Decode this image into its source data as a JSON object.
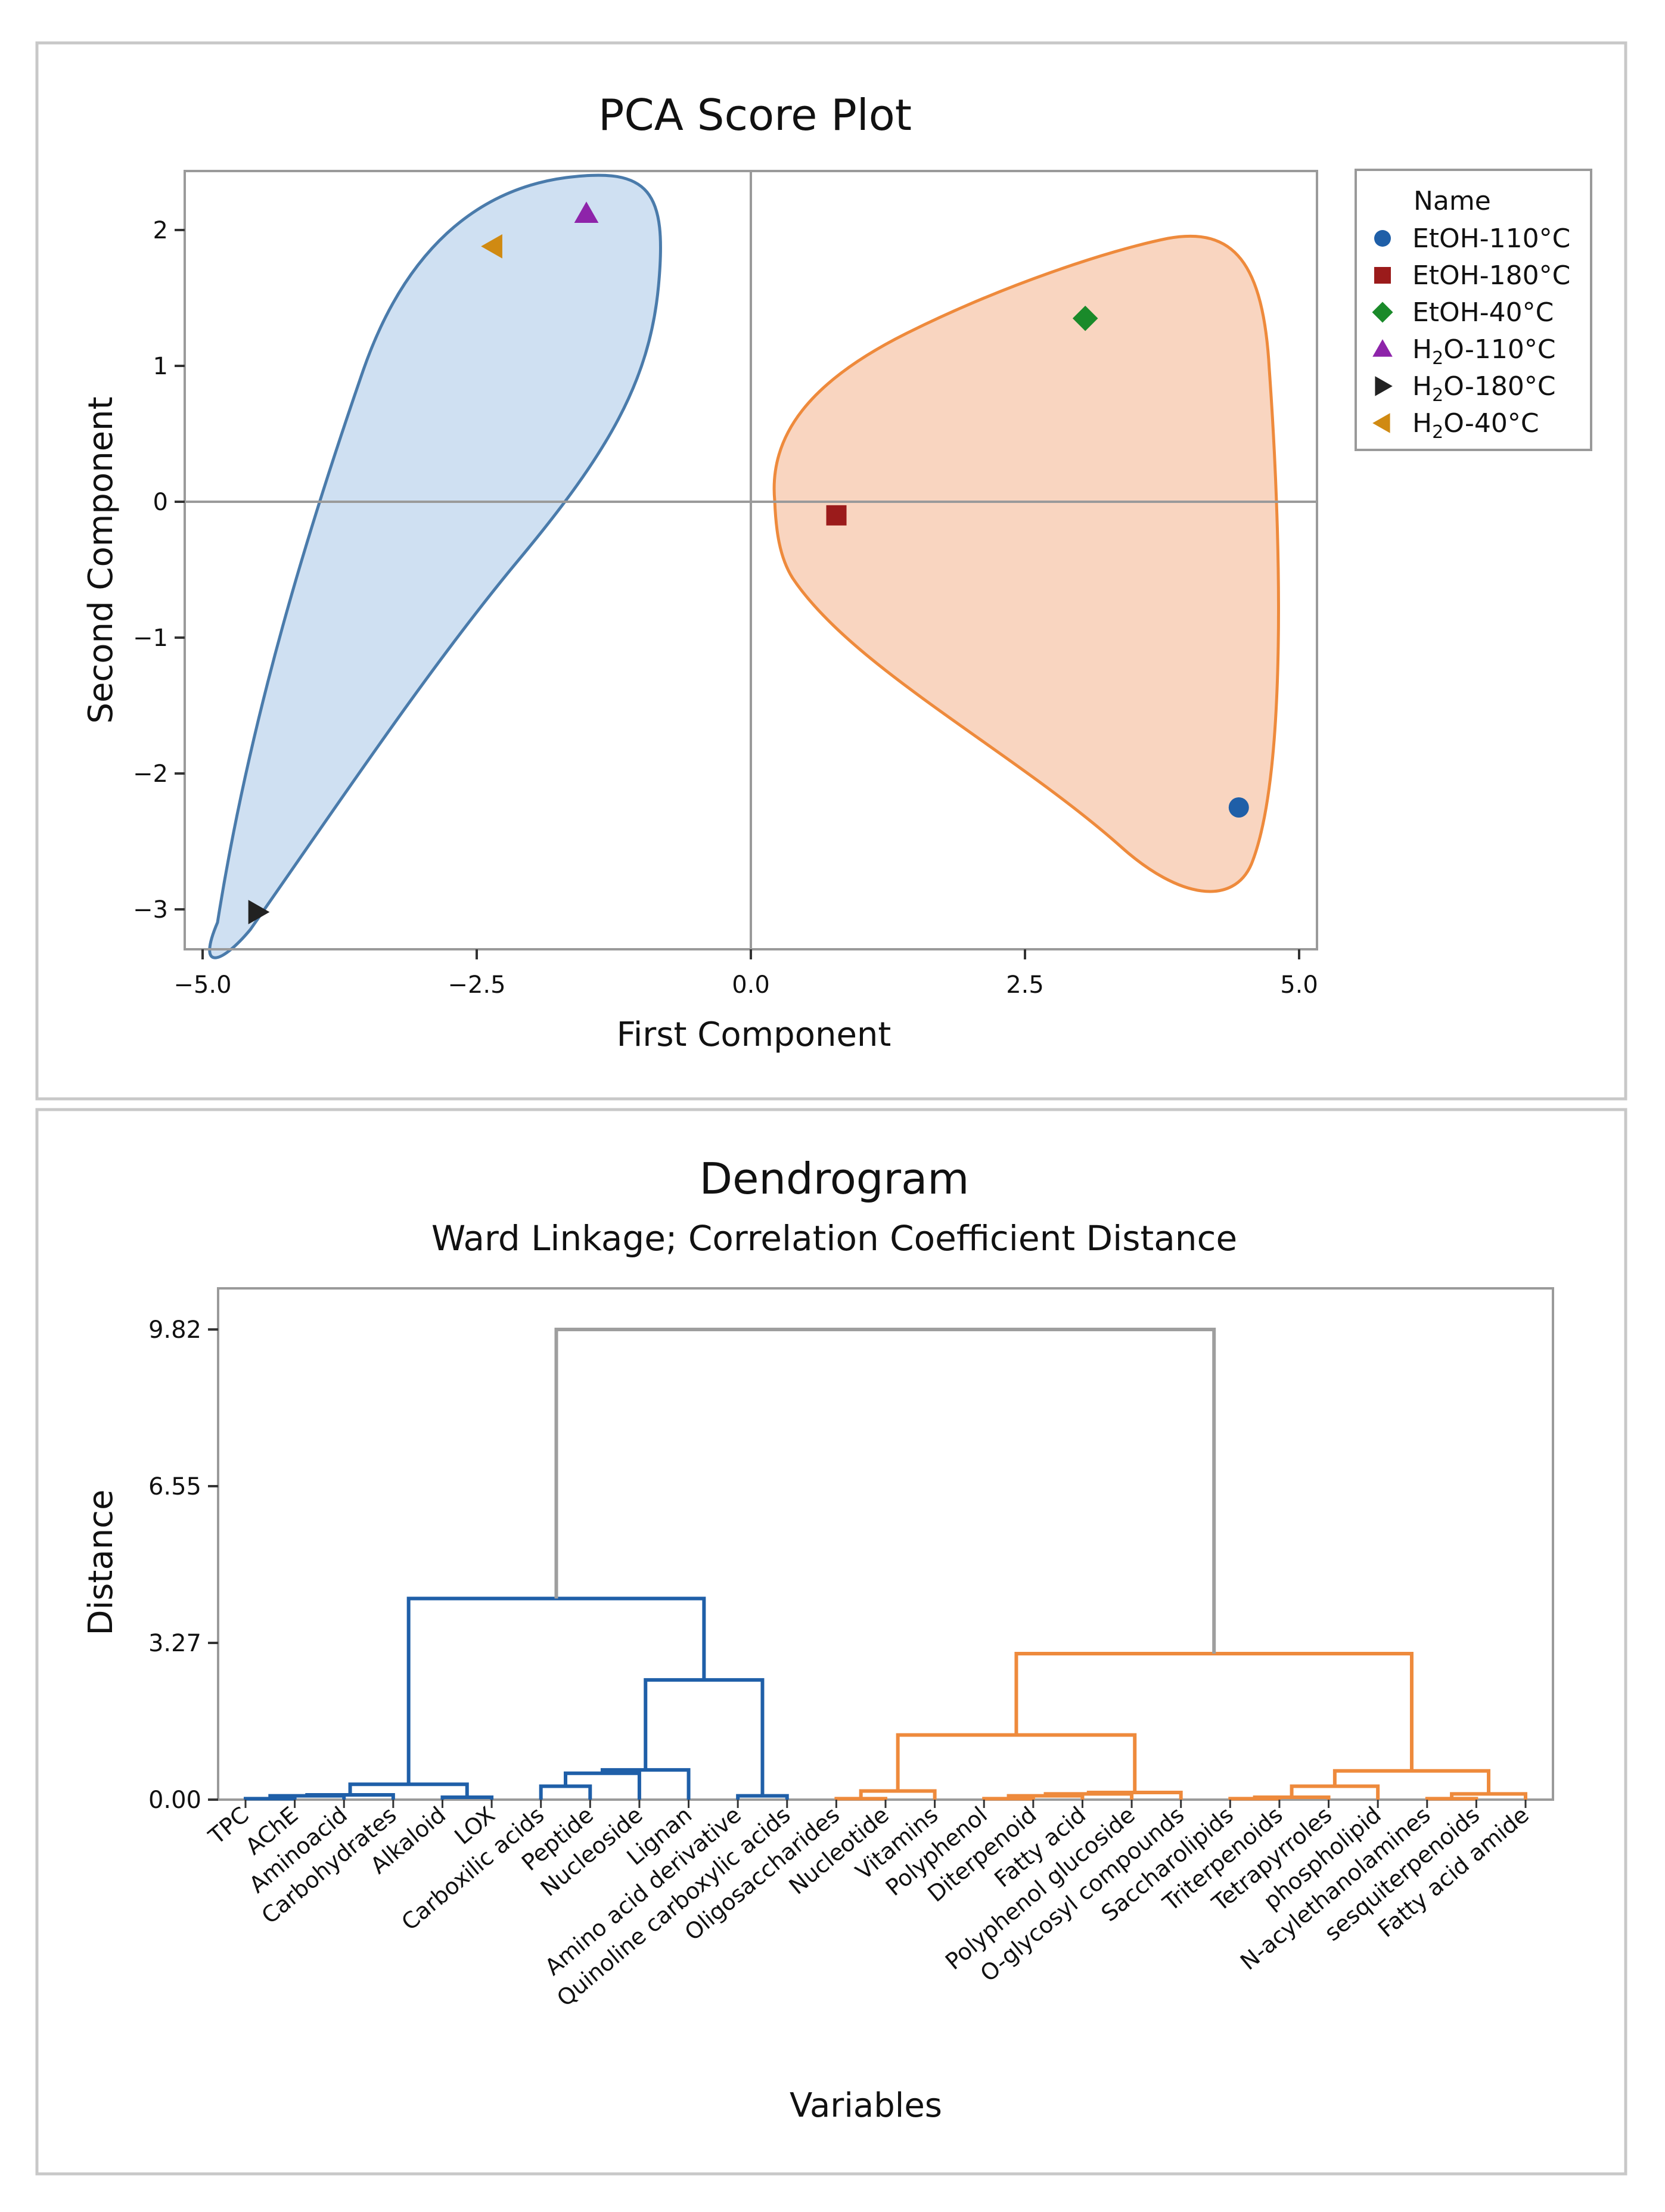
{
  "chart_data": [
    {
      "type": "scatter",
      "title": "PCA Score Plot",
      "xlabel": "First Component",
      "ylabel": "Second Component",
      "xlim": [
        -5.0,
        5.0
      ],
      "ylim": [
        -3.3,
        2.4
      ],
      "x_ticks": [
        -5.0,
        -2.5,
        0.0,
        2.5,
        5.0
      ],
      "x_tick_labels": [
        "−5.0",
        "−2.5",
        "0.0",
        "2.5",
        "5.0"
      ],
      "y_ticks": [
        -3,
        -2,
        -1,
        0,
        1,
        2
      ],
      "y_tick_labels": [
        "−3",
        "−2",
        "−1",
        "0",
        "1",
        "2"
      ],
      "reference_lines": {
        "x": 0,
        "y": 0
      },
      "legend": {
        "title": "Name",
        "position": "right"
      },
      "series": [
        {
          "name": "EtOH-110°C",
          "label_main": "EtOH-110°C",
          "label_sub": "",
          "label_tail": "",
          "marker": "circle",
          "color": "#1f5fa8",
          "x": 4.45,
          "y": -2.25
        },
        {
          "name": "EtOH-180°C",
          "label_main": "EtOH-180°C",
          "label_sub": "",
          "label_tail": "",
          "marker": "square",
          "color": "#9b1b1b",
          "x": 0.78,
          "y": -0.1
        },
        {
          "name": "EtOH-40°C",
          "label_main": "EtOH-40°C",
          "label_sub": "",
          "label_tail": "",
          "marker": "diamond",
          "color": "#1a8a2a",
          "x": 3.05,
          "y": 1.35
        },
        {
          "name": "H2O-110°C",
          "label_main": "H",
          "label_sub": "2",
          "label_tail": "O-110°C",
          "marker": "triangle-up",
          "color": "#8e24aa",
          "x": -1.5,
          "y": 2.12
        },
        {
          "name": "H2O-180°C",
          "label_main": "H",
          "label_sub": "2",
          "label_tail": "O-180°C",
          "marker": "triangle-right",
          "color": "#222222",
          "x": -4.5,
          "y": -3.02
        },
        {
          "name": "H2O-40°C",
          "label_main": "H",
          "label_sub": "2",
          "label_tail": "O-40°C",
          "marker": "triangle-left",
          "color": "#d08a12",
          "x": -2.35,
          "y": 1.88
        }
      ],
      "clusters": [
        {
          "color_fill": "#cfe0f2",
          "color_edge": "#4a7bab",
          "members": [
            "H2O-110°C",
            "H2O-180°C",
            "H2O-40°C"
          ]
        },
        {
          "color_fill": "#f9d5c0",
          "color_edge": "#ee8a3c",
          "members": [
            "EtOH-110°C",
            "EtOH-180°C",
            "EtOH-40°C"
          ]
        }
      ]
    },
    {
      "type": "dendrogram",
      "title": "Dendrogram",
      "subtitle": "Ward Linkage; Correlation Coefficient Distance",
      "xlabel": "Variables",
      "ylabel": "Distance",
      "ylim": [
        0,
        10.3
      ],
      "y_ticks": [
        0.0,
        3.27,
        6.55,
        9.82
      ],
      "y_tick_labels": [
        "0.00",
        "3.27",
        "6.55",
        "9.82"
      ],
      "leaves": [
        "TPC",
        "AChE",
        "Aminoacid",
        "Carbohydrates",
        "Alkaloid",
        "LOX",
        "Carboxilic acids",
        "Peptide",
        "Nucleoside",
        "Lignan",
        "Amino acid derivative",
        "Quinoline carboxylic acids",
        "Oligosaccharides",
        "Nucleotide",
        "Vitamins",
        "Polyphenol",
        "Diterpenoid",
        "Fatty acid",
        "Polyphenol glucoside",
        "O-glycosyl compounds",
        "Saccharolipids",
        "Triterpenoids",
        "Tetrapyrroles",
        "phospholipid",
        "N-acylethanolamines",
        "sesquiterpenoids",
        "Fatty acid amide"
      ],
      "colors": {
        "cluster1": "#1f5fa8",
        "cluster2": "#ee8a3c",
        "root": "#9e9e9e"
      },
      "merges": [
        {
          "a": "L0",
          "b": "L1",
          "h": 0.02,
          "c": "cluster1"
        },
        {
          "a": "N0",
          "b": "L2",
          "h": 0.08,
          "c": "cluster1"
        },
        {
          "a": "N1",
          "b": "L3",
          "h": 0.1,
          "c": "cluster1"
        },
        {
          "a": "L4",
          "b": "L5",
          "h": 0.05,
          "c": "cluster1"
        },
        {
          "a": "N2",
          "b": "N3",
          "h": 0.32,
          "c": "cluster1"
        },
        {
          "a": "L6",
          "b": "L7",
          "h": 0.28,
          "c": "cluster1"
        },
        {
          "a": "N5",
          "b": "L8",
          "h": 0.55,
          "c": "cluster1"
        },
        {
          "a": "N6",
          "b": "L9",
          "h": 0.62,
          "c": "cluster1"
        },
        {
          "a": "L10",
          "b": "L11",
          "h": 0.08,
          "c": "cluster1"
        },
        {
          "a": "N7",
          "b": "N8",
          "h": 2.5,
          "c": "cluster1"
        },
        {
          "a": "N4",
          "b": "N9",
          "h": 4.2,
          "c": "cluster1"
        },
        {
          "a": "L12",
          "b": "L13",
          "h": 0.02,
          "c": "cluster2"
        },
        {
          "a": "N11",
          "b": "L14",
          "h": 0.18,
          "c": "cluster2"
        },
        {
          "a": "L15",
          "b": "L16",
          "h": 0.02,
          "c": "cluster2"
        },
        {
          "a": "N13",
          "b": "L17",
          "h": 0.08,
          "c": "cluster2"
        },
        {
          "a": "N14",
          "b": "L18",
          "h": 0.12,
          "c": "cluster2"
        },
        {
          "a": "N15",
          "b": "L19",
          "h": 0.15,
          "c": "cluster2"
        },
        {
          "a": "N12",
          "b": "N16",
          "h": 1.35,
          "c": "cluster2"
        },
        {
          "a": "L20",
          "b": "L21",
          "h": 0.02,
          "c": "cluster2"
        },
        {
          "a": "N18",
          "b": "L22",
          "h": 0.05,
          "c": "cluster2"
        },
        {
          "a": "N19",
          "b": "L23",
          "h": 0.28,
          "c": "cluster2"
        },
        {
          "a": "L24",
          "b": "L25",
          "h": 0.02,
          "c": "cluster2"
        },
        {
          "a": "N21",
          "b": "L26",
          "h": 0.12,
          "c": "cluster2"
        },
        {
          "a": "N20",
          "b": "N22",
          "h": 0.6,
          "c": "cluster2"
        },
        {
          "a": "N17",
          "b": "N23",
          "h": 3.05,
          "c": "cluster2"
        },
        {
          "a": "N10",
          "b": "N24",
          "h": 9.82,
          "c": "root"
        }
      ]
    }
  ]
}
